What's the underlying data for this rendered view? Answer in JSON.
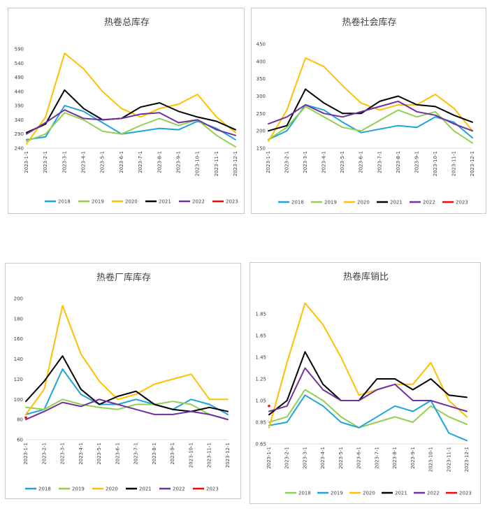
{
  "chart_data": [
    {
      "type": "line",
      "title": "热卷总库存",
      "ylim": [
        240,
        590
      ],
      "yticks": [
        "590",
        "540",
        "490",
        "440",
        "390",
        "340",
        "290",
        "240"
      ],
      "xticks": [
        "2023-1-1",
        "2023-2-1",
        "2023-3-1",
        "2023-4-1",
        "2023-5-1",
        "2023-6-1",
        "2023-7-1",
        "2023-8-1",
        "2023-9-1",
        "2023-10-1",
        "2023-11-1",
        "2023-12-1"
      ],
      "legend_position": "bottom",
      "series": [
        {
          "name": "2018",
          "color": "#1ea4dc",
          "x": [
            0,
            1,
            2,
            3,
            4,
            5,
            6,
            7,
            8,
            9,
            10,
            11
          ],
          "values": [
            270,
            280,
            390,
            370,
            330,
            290,
            300,
            310,
            305,
            335,
            310,
            270
          ]
        },
        {
          "name": "2019",
          "color": "#92d050",
          "x": [
            0,
            1,
            2,
            3,
            4,
            5,
            6,
            7,
            8,
            9,
            10,
            11
          ],
          "values": [
            265,
            290,
            365,
            340,
            300,
            290,
            320,
            345,
            320,
            340,
            285,
            245
          ]
        },
        {
          "name": "2020",
          "color": "#ffc000",
          "x": [
            0,
            1,
            2,
            3,
            4,
            5,
            6,
            7,
            8,
            9,
            10,
            11
          ],
          "values": [
            255,
            350,
            575,
            520,
            440,
            380,
            350,
            380,
            395,
            430,
            350,
            295
          ]
        },
        {
          "name": "2021",
          "color": "#000000",
          "x": [
            0,
            1,
            2,
            3,
            4,
            5,
            6,
            7,
            8,
            9,
            10,
            11
          ],
          "values": [
            295,
            325,
            445,
            380,
            340,
            345,
            385,
            400,
            370,
            350,
            335,
            305
          ]
        },
        {
          "name": "2022",
          "color": "#7030a0",
          "x": [
            0,
            1,
            2,
            3,
            4,
            5,
            6,
            7,
            8,
            9,
            10,
            11
          ],
          "values": [
            290,
            330,
            375,
            345,
            340,
            345,
            360,
            365,
            330,
            340,
            305,
            285
          ]
        },
        {
          "name": "2023",
          "color": "#ff0000",
          "x": [],
          "values": []
        }
      ]
    },
    {
      "type": "line",
      "title": "热卷社会库存",
      "ylim": [
        150,
        450
      ],
      "yticks": [
        "450",
        "400",
        "350",
        "300",
        "250",
        "200",
        "150"
      ],
      "xticks": [
        "2023-1-1",
        "2023-2-1",
        "2023-3-1",
        "2023-4-1",
        "2023-5-1",
        "2023-6-1",
        "2023-7-1",
        "2023-8-1",
        "2023-9-1",
        "2023-10-1",
        "2023-11-1",
        "2023-12-1"
      ],
      "legend_position": "bottom",
      "series": [
        {
          "name": "2018",
          "color": "#1ea4dc",
          "x": [
            0,
            1,
            2,
            3,
            4,
            5,
            6,
            7,
            8,
            9,
            10,
            11
          ],
          "values": [
            175,
            200,
            275,
            260,
            225,
            195,
            205,
            215,
            210,
            240,
            225,
            180
          ]
        },
        {
          "name": "2019",
          "color": "#92d050",
          "x": [
            0,
            1,
            2,
            3,
            4,
            5,
            6,
            7,
            8,
            9,
            10,
            11
          ],
          "values": [
            175,
            210,
            270,
            240,
            210,
            200,
            230,
            260,
            240,
            255,
            200,
            165
          ]
        },
        {
          "name": "2020",
          "color": "#ffc000",
          "x": [
            0,
            1,
            2,
            3,
            4,
            5,
            6,
            7,
            8,
            9,
            10,
            11
          ],
          "values": [
            170,
            260,
            410,
            385,
            330,
            280,
            260,
            275,
            275,
            305,
            265,
            200
          ]
        },
        {
          "name": "2021",
          "color": "#000000",
          "x": [
            0,
            1,
            2,
            3,
            4,
            5,
            6,
            7,
            8,
            9,
            10,
            11
          ],
          "values": [
            200,
            215,
            320,
            280,
            250,
            250,
            285,
            300,
            275,
            270,
            245,
            225
          ]
        },
        {
          "name": "2022",
          "color": "#7030a0",
          "x": [
            0,
            1,
            2,
            3,
            4,
            5,
            6,
            7,
            8,
            9,
            10,
            11
          ],
          "values": [
            220,
            240,
            275,
            250,
            240,
            255,
            270,
            285,
            255,
            245,
            220,
            200
          ]
        },
        {
          "name": "2023",
          "color": "#ff0000",
          "x": [],
          "values": []
        }
      ]
    },
    {
      "type": "line",
      "title": "热卷厂库库存",
      "ylim": [
        60,
        200
      ],
      "yticks": [
        "200",
        "180",
        "160",
        "140",
        "120",
        "100",
        "80",
        "60"
      ],
      "xticks": [
        "2023-1-1",
        "2023-2-1",
        "2023-3-1",
        "2023-4-1",
        "2023-5-1",
        "2023-6-1",
        "2023-7-1",
        "2023-8-1",
        "2023-9-1",
        "2023-10-1",
        "2023-11-1",
        "2023-12-1"
      ],
      "legend_position": "bottom",
      "series": [
        {
          "name": "2018",
          "color": "#1ea4dc",
          "x": [
            0,
            1,
            2,
            3,
            4,
            5,
            6,
            7,
            8,
            9,
            10,
            11
          ],
          "values": [
            85,
            90,
            130,
            105,
            95,
            95,
            100,
            95,
            90,
            100,
            95,
            85
          ]
        },
        {
          "name": "2019",
          "color": "#92d050",
          "x": [
            0,
            1,
            2,
            3,
            4,
            5,
            6,
            7,
            8,
            9,
            10,
            11
          ],
          "values": [
            92,
            90,
            100,
            95,
            92,
            90,
            95,
            95,
            98,
            95,
            85,
            80
          ]
        },
        {
          "name": "2020",
          "color": "#ffc000",
          "x": [
            0,
            1,
            2,
            3,
            4,
            5,
            6,
            7,
            8,
            9,
            10,
            11
          ],
          "values": [
            85,
            110,
            193,
            145,
            118,
            100,
            105,
            115,
            120,
            125,
            100,
            100
          ]
        },
        {
          "name": "2021",
          "color": "#000000",
          "x": [
            0,
            1,
            2,
            3,
            4,
            5,
            6,
            7,
            8,
            9,
            10,
            11
          ],
          "values": [
            98,
            118,
            143,
            110,
            95,
            103,
            108,
            95,
            90,
            88,
            92,
            88
          ]
        },
        {
          "name": "2022",
          "color": "#7030a0",
          "x": [
            0,
            1,
            2,
            3,
            4,
            5,
            6,
            7,
            8,
            9,
            10,
            11
          ],
          "values": [
            80,
            88,
            97,
            93,
            100,
            95,
            90,
            85,
            85,
            88,
            85,
            80
          ]
        },
        {
          "name": "2023",
          "color": "#ff0000",
          "x": [
            0
          ],
          "values": [
            82
          ]
        }
      ]
    },
    {
      "type": "line",
      "title": "热卷库销比",
      "ylim": [
        0.65,
        1.85
      ],
      "yticks": [
        "1.85",
        "1.65",
        "1.45",
        "1.25",
        "1.05",
        "0.85",
        "0.65"
      ],
      "xticks": [
        "2023-1-1",
        "2023-2-1",
        "2023-3-1",
        "2023-4-1",
        "2023-5-1",
        "2023-6-1",
        "2023-7-1",
        "2023-8-1",
        "2023-9-1",
        "2023-10-1",
        "2023-11-1",
        "2023-12-1"
      ],
      "legend_position": "bottom",
      "series": [
        {
          "name": "2018",
          "color": "#92d050",
          "x": [
            0,
            1,
            2,
            3,
            4,
            5,
            6,
            7,
            8,
            9,
            10,
            11
          ],
          "values": [
            0.85,
            0.9,
            1.15,
            1.05,
            0.9,
            0.8,
            0.85,
            0.9,
            0.85,
            1.0,
            0.9,
            0.83
          ]
        },
        {
          "name": "2019",
          "color": "#1ea4dc",
          "x": [
            0,
            1,
            2,
            3,
            4,
            5,
            6,
            7,
            8,
            9,
            10,
            11
          ],
          "values": [
            0.82,
            0.85,
            1.1,
            1.0,
            0.85,
            0.8,
            0.9,
            1.0,
            0.95,
            1.05,
            0.75,
            0.68
          ]
        },
        {
          "name": "2020",
          "color": "#ffc000",
          "x": [
            0,
            1,
            2,
            3,
            4,
            5,
            6,
            7,
            8,
            9,
            10,
            11
          ],
          "values": [
            0.8,
            1.4,
            1.95,
            1.75,
            1.45,
            1.1,
            1.15,
            1.2,
            1.2,
            1.4,
            1.05,
            0.9
          ]
        },
        {
          "name": "2021",
          "color": "#000000",
          "x": [
            0,
            1,
            2,
            3,
            4,
            5,
            6,
            7,
            8,
            9,
            10,
            11
          ],
          "values": [
            0.92,
            1.05,
            1.5,
            1.2,
            1.05,
            1.05,
            1.25,
            1.25,
            1.15,
            1.25,
            1.1,
            1.08
          ]
        },
        {
          "name": "2022",
          "color": "#7030a0",
          "x": [
            0,
            1,
            2,
            3,
            4,
            5,
            6,
            7,
            8,
            9,
            10,
            11
          ],
          "values": [
            0.95,
            1.0,
            1.35,
            1.15,
            1.05,
            1.05,
            1.15,
            1.2,
            1.05,
            1.05,
            1.0,
            0.95
          ]
        },
        {
          "name": "2023",
          "color": "#ff0000",
          "x": [
            0
          ],
          "values": [
            1.0
          ]
        }
      ]
    }
  ]
}
